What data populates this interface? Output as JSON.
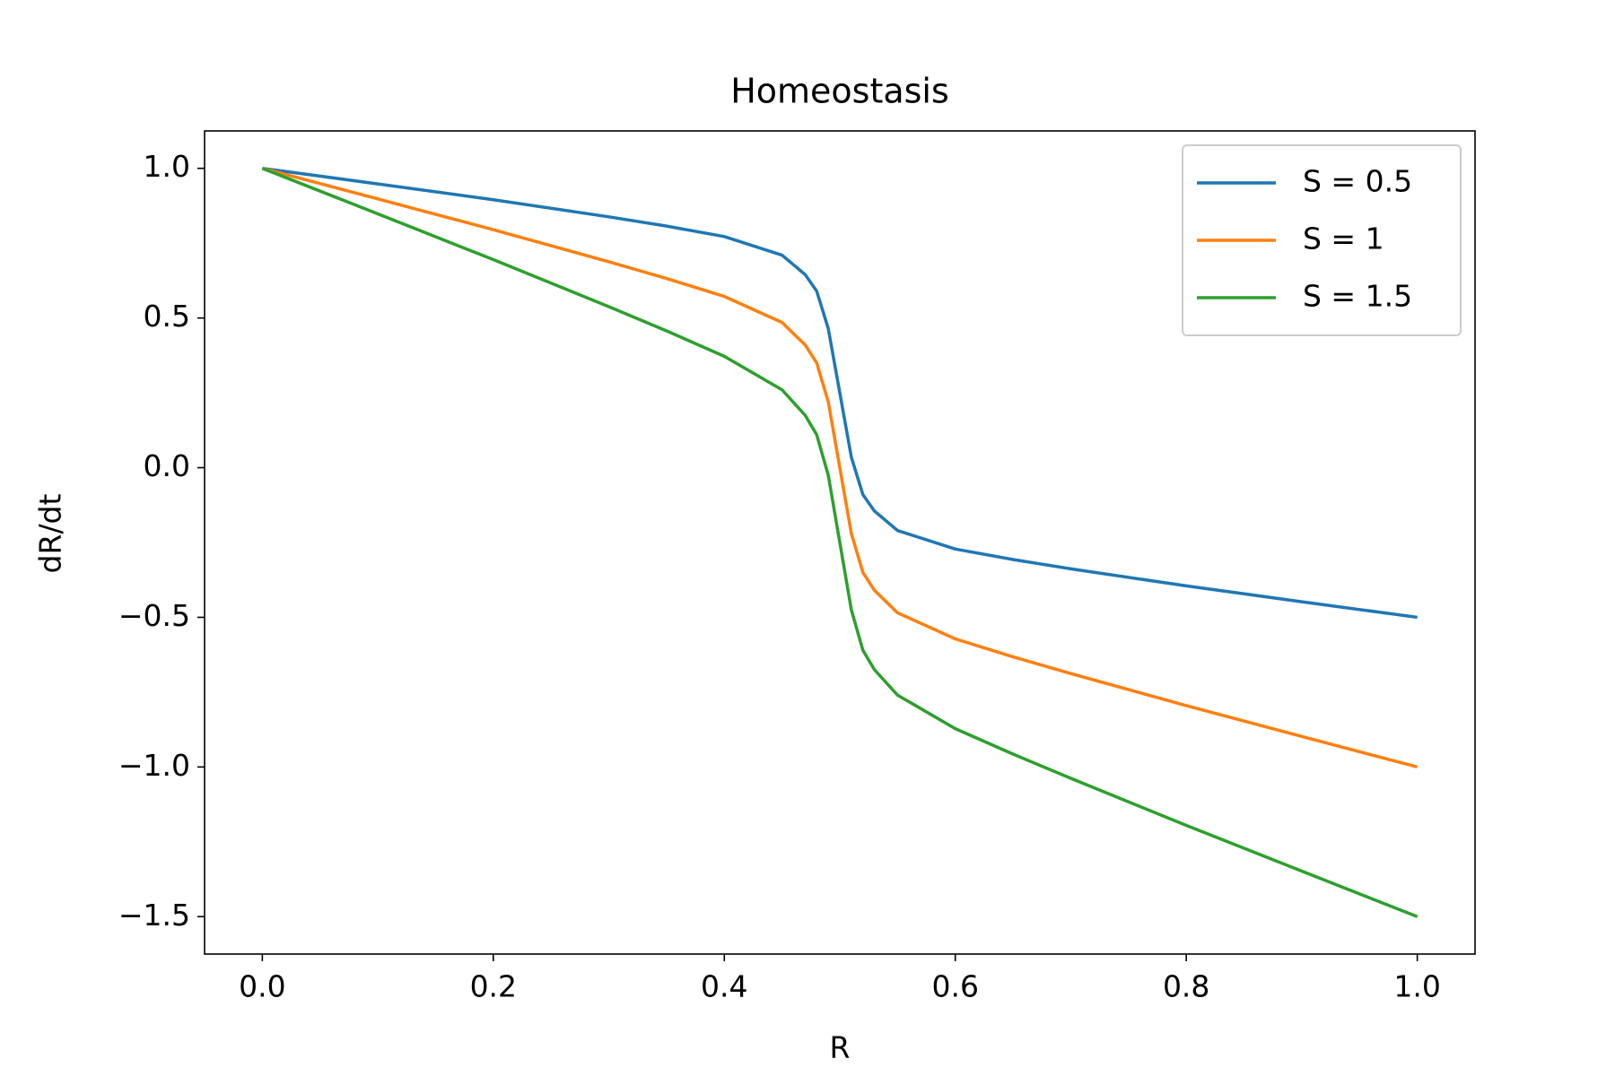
{
  "chart_data": {
    "type": "line",
    "title": "Homeostasis",
    "xlabel": "R",
    "ylabel": "dR/dt",
    "x": [
      0,
      0.1,
      0.2,
      0.3,
      0.35,
      0.4,
      0.45,
      0.47,
      0.48,
      0.49,
      0.5,
      0.51,
      0.52,
      0.53,
      0.55,
      0.6,
      0.65,
      0.7,
      0.8,
      0.9,
      1.0
    ],
    "series": [
      {
        "name": "S = 0.5",
        "color": "#1f77b4",
        "values": [
          1,
          0.948,
          0.895,
          0.838,
          0.807,
          0.772,
          0.71,
          0.645,
          0.59,
          0.465,
          0.25,
          0.035,
          -0.09,
          -0.145,
          -0.21,
          -0.272,
          -0.307,
          -0.338,
          -0.395,
          -0.448,
          -0.5
        ]
      },
      {
        "name": "S = 1",
        "color": "#ff7f0e",
        "values": [
          1,
          0.898,
          0.795,
          0.688,
          0.632,
          0.572,
          0.485,
          0.41,
          0.35,
          0.22,
          0,
          -0.22,
          -0.35,
          -0.41,
          -0.485,
          -0.572,
          -0.632,
          -0.688,
          -0.795,
          -0.898,
          -1
        ]
      },
      {
        "name": "S = 1.5",
        "color": "#2ca02c",
        "values": [
          1,
          0.848,
          0.695,
          0.538,
          0.457,
          0.372,
          0.26,
          0.175,
          0.11,
          -0.025,
          -0.25,
          -0.475,
          -0.61,
          -0.675,
          -0.76,
          -0.872,
          -0.957,
          -1.038,
          -1.195,
          -1.348,
          -1.5
        ]
      }
    ],
    "xlim": [
      -0.05,
      1.05
    ],
    "ylim": [
      -1.625,
      1.125
    ],
    "xticks": [
      {
        "value": 0,
        "label": "0.0"
      },
      0.2,
      0.4,
      0.6,
      0.8,
      {
        "value": 1,
        "label": "1.0"
      }
    ],
    "yticks": [
      {
        "value": -1.5,
        "label": "−1.5"
      },
      {
        "value": -1,
        "label": "−1.0"
      },
      {
        "value": -0.5,
        "label": "−0.5"
      },
      {
        "value": 0,
        "label": "0.0"
      },
      0.5,
      {
        "value": 1,
        "label": "1.0"
      }
    ],
    "grid": false,
    "legend": "upper right"
  }
}
